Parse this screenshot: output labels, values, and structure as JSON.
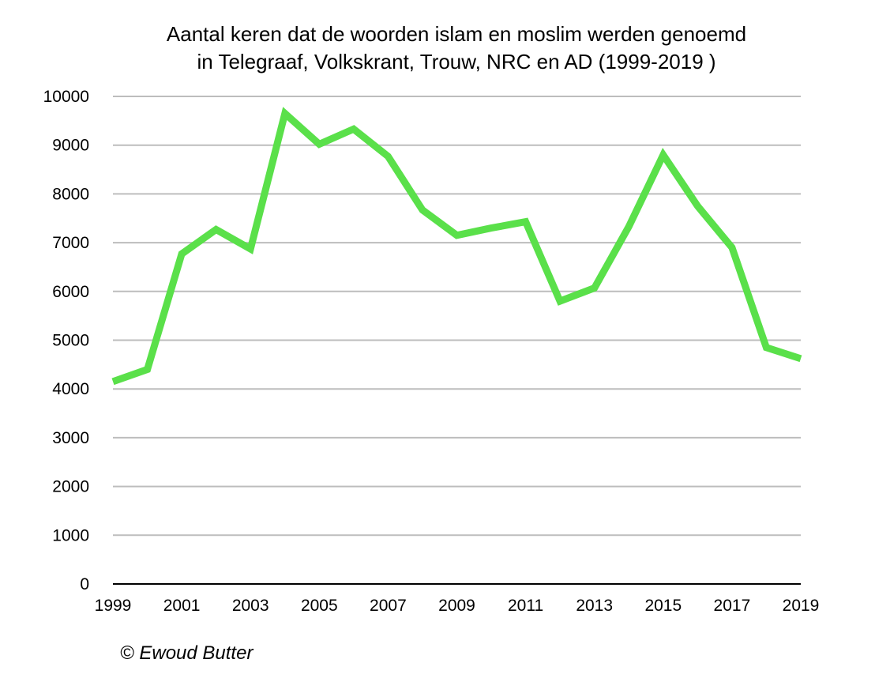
{
  "chart_data": {
    "type": "line",
    "title": [
      "Aantal keren dat de woorden islam en moslim werden genoemd",
      "in Telegraaf, Volkskrant, Trouw, NRC en AD (1999-2019 )"
    ],
    "xlabel": "",
    "ylabel": "",
    "x": [
      1999,
      2000,
      2001,
      2002,
      2003,
      2004,
      2005,
      2006,
      2007,
      2008,
      2009,
      2010,
      2011,
      2012,
      2013,
      2014,
      2015,
      2016,
      2017,
      2018,
      2019
    ],
    "x_tick_labels": [
      "1999",
      "2001",
      "2003",
      "2005",
      "2007",
      "2009",
      "2011",
      "2013",
      "2015",
      "2017",
      "2019"
    ],
    "x_ticks": [
      1999,
      2001,
      2003,
      2005,
      2007,
      2009,
      2011,
      2013,
      2015,
      2017,
      2019
    ],
    "xlim": [
      1999,
      2019
    ],
    "y_ticks": [
      0,
      1000,
      2000,
      3000,
      4000,
      5000,
      6000,
      7000,
      8000,
      9000,
      10000
    ],
    "y_tick_labels": [
      "0",
      "1000",
      "2000",
      "3000",
      "4000",
      "5000",
      "6000",
      "7000",
      "8000",
      "9000",
      "10000"
    ],
    "ylim": [
      0,
      10000
    ],
    "grid": true,
    "series": [
      {
        "color": "#5ae04a",
        "values": [
          4150,
          4400,
          6770,
          7270,
          6870,
          9650,
          9020,
          9330,
          8770,
          7670,
          7150,
          7300,
          7430,
          5800,
          6070,
          7330,
          8800,
          7750,
          6900,
          4850,
          4620
        ]
      }
    ]
  },
  "credit": "© Ewoud Butter"
}
